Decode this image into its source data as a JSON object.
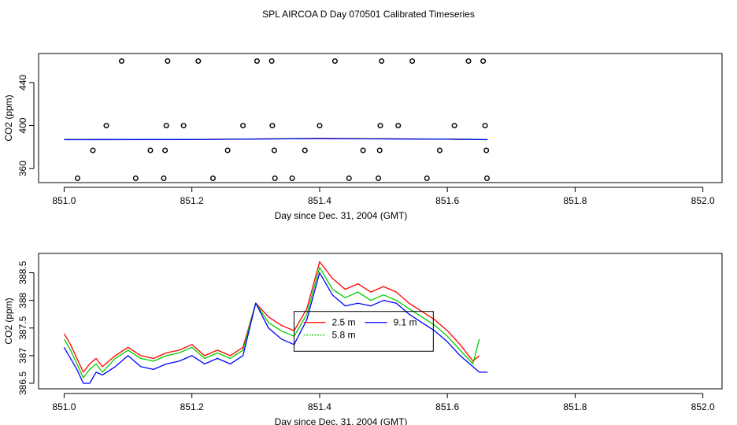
{
  "figure": {
    "title": "SPL AIRCOA D  Day 070501  Calibrated Timeseries"
  },
  "chart_data": [
    {
      "type": "scatter",
      "title": "",
      "xlabel": "Day since Dec. 31, 2004 (GMT)",
      "ylabel": "CO2 (ppm)",
      "xlim": [
        850.96,
        852.03
      ],
      "ylim": [
        347,
        467
      ],
      "xticks": [
        851.0,
        851.2,
        851.4,
        851.6,
        851.8,
        852.0
      ],
      "xtick_labels": [
        "851.0",
        "851.2",
        "851.4",
        "851.6",
        "851.8",
        "852.0"
      ],
      "yticks": [
        360,
        400,
        440
      ],
      "ytick_labels": [
        "360",
        "400",
        "440"
      ],
      "calibration_points": {
        "x": [
          851.09,
          851.162,
          851.21,
          851.302,
          851.325,
          851.424,
          851.497,
          851.545,
          851.633,
          851.656,
          851.066,
          851.16,
          851.187,
          851.28,
          851.326,
          851.4,
          851.495,
          851.523,
          851.611,
          851.659,
          851.045,
          851.135,
          851.158,
          851.256,
          851.329,
          851.377,
          851.468,
          851.494,
          851.588,
          851.661,
          851.021,
          851.112,
          851.156,
          851.233,
          851.33,
          851.357,
          851.446,
          851.492,
          851.568,
          851.662
        ],
        "y": [
          460,
          460,
          460,
          460,
          460,
          460,
          460,
          460,
          460,
          460,
          400,
          400,
          400,
          400,
          400,
          400,
          400,
          400,
          400,
          400,
          377,
          377,
          377,
          377,
          377,
          377,
          377,
          377,
          377,
          377,
          351,
          351,
          351,
          351,
          351,
          351,
          351,
          351,
          351,
          351
        ]
      },
      "series": [
        {
          "name": "2.5 m",
          "color": "#ff0000",
          "x": [
            851.0,
            851.2,
            851.4,
            851.6,
            851.663
          ],
          "y": [
            387,
            387.1,
            388.1,
            387.4,
            387
          ]
        },
        {
          "name": "5.8 m",
          "color": "#00cc00",
          "x": [
            851.0,
            851.2,
            851.4,
            851.6,
            851.663
          ],
          "y": [
            387,
            387.1,
            388,
            387.4,
            387
          ]
        },
        {
          "name": "9.1 m",
          "color": "#0000ff",
          "x": [
            851.0,
            851.2,
            851.4,
            851.6,
            851.663
          ],
          "y": [
            386.9,
            387,
            387.9,
            387.3,
            386.9
          ]
        }
      ]
    },
    {
      "type": "line",
      "title": "",
      "xlabel": "Day since Dec. 31, 2004 (GMT)",
      "ylabel": "CO2 (ppm)",
      "xlim": [
        850.96,
        852.03
      ],
      "ylim": [
        386.4,
        388.85
      ],
      "xticks": [
        851.0,
        851.2,
        851.4,
        851.6,
        851.8,
        852.0
      ],
      "xtick_labels": [
        "851.0",
        "851.2",
        "851.4",
        "851.6",
        "851.8",
        "852.0"
      ],
      "yticks": [
        386.5,
        387.0,
        387.5,
        388.0,
        388.5
      ],
      "ytick_labels": [
        "386.5",
        "387",
        "387.5",
        "388",
        "388.5"
      ],
      "legend": {
        "position": "center",
        "labels": [
          "2.5 m",
          "5.8 m",
          "9.1 m"
        ]
      },
      "series": [
        {
          "name": "2.5 m",
          "color": "#ff0000",
          "x": [
            851.0,
            851.01,
            851.02,
            851.03,
            851.04,
            851.05,
            851.06,
            851.08,
            851.1,
            851.12,
            851.14,
            851.16,
            851.18,
            851.2,
            851.22,
            851.24,
            851.26,
            851.28,
            851.3,
            851.32,
            851.34,
            851.36,
            851.38,
            851.4,
            851.42,
            851.44,
            851.46,
            851.48,
            851.5,
            851.52,
            851.54,
            851.56,
            851.58,
            851.6,
            851.62,
            851.64,
            851.65
          ],
          "y": [
            387.4,
            387.2,
            386.95,
            386.7,
            386.85,
            386.95,
            386.8,
            387.0,
            387.15,
            387.0,
            386.95,
            387.05,
            387.1,
            387.2,
            387.0,
            387.1,
            387.0,
            387.15,
            387.95,
            387.7,
            387.55,
            387.45,
            387.85,
            388.7,
            388.4,
            388.2,
            388.3,
            388.15,
            388.25,
            388.15,
            387.95,
            387.8,
            387.65,
            387.45,
            387.2,
            386.9,
            387.0
          ]
        },
        {
          "name": "5.8 m",
          "color": "#00cc00",
          "x": [
            851.0,
            851.01,
            851.02,
            851.03,
            851.04,
            851.05,
            851.06,
            851.08,
            851.1,
            851.12,
            851.14,
            851.16,
            851.18,
            851.2,
            851.22,
            851.24,
            851.26,
            851.28,
            851.3,
            851.32,
            851.34,
            851.36,
            851.38,
            851.4,
            851.42,
            851.44,
            851.46,
            851.48,
            851.5,
            851.52,
            851.54,
            851.56,
            851.58,
            851.6,
            851.62,
            851.64,
            851.65
          ],
          "y": [
            387.3,
            387.1,
            386.85,
            386.6,
            386.75,
            386.85,
            386.7,
            386.95,
            387.1,
            386.95,
            386.9,
            387.0,
            387.05,
            387.15,
            386.95,
            387.05,
            386.95,
            387.1,
            387.95,
            387.6,
            387.45,
            387.35,
            387.75,
            388.6,
            388.2,
            388.05,
            388.15,
            388.0,
            388.1,
            388.0,
            387.85,
            387.7,
            387.55,
            387.35,
            387.1,
            386.85,
            387.3
          ]
        },
        {
          "name": "9.1 m",
          "color": "#0000ff",
          "x": [
            851.0,
            851.01,
            851.02,
            851.03,
            851.04,
            851.05,
            851.06,
            851.08,
            851.1,
            851.12,
            851.14,
            851.16,
            851.18,
            851.2,
            851.22,
            851.24,
            851.26,
            851.28,
            851.3,
            851.32,
            851.34,
            851.36,
            851.38,
            851.4,
            851.42,
            851.44,
            851.46,
            851.48,
            851.5,
            851.52,
            851.54,
            851.56,
            851.58,
            851.6,
            851.62,
            851.64,
            851.65,
            851.663
          ],
          "y": [
            387.15,
            386.95,
            386.75,
            386.5,
            386.5,
            386.7,
            386.65,
            386.8,
            387.0,
            386.8,
            386.75,
            386.85,
            386.9,
            387.0,
            386.85,
            386.95,
            386.85,
            387.0,
            387.95,
            387.5,
            387.3,
            387.2,
            387.65,
            388.5,
            388.1,
            387.9,
            387.95,
            387.9,
            388.0,
            387.95,
            387.75,
            387.6,
            387.45,
            387.25,
            387.0,
            386.8,
            386.7,
            386.7
          ]
        }
      ]
    }
  ]
}
